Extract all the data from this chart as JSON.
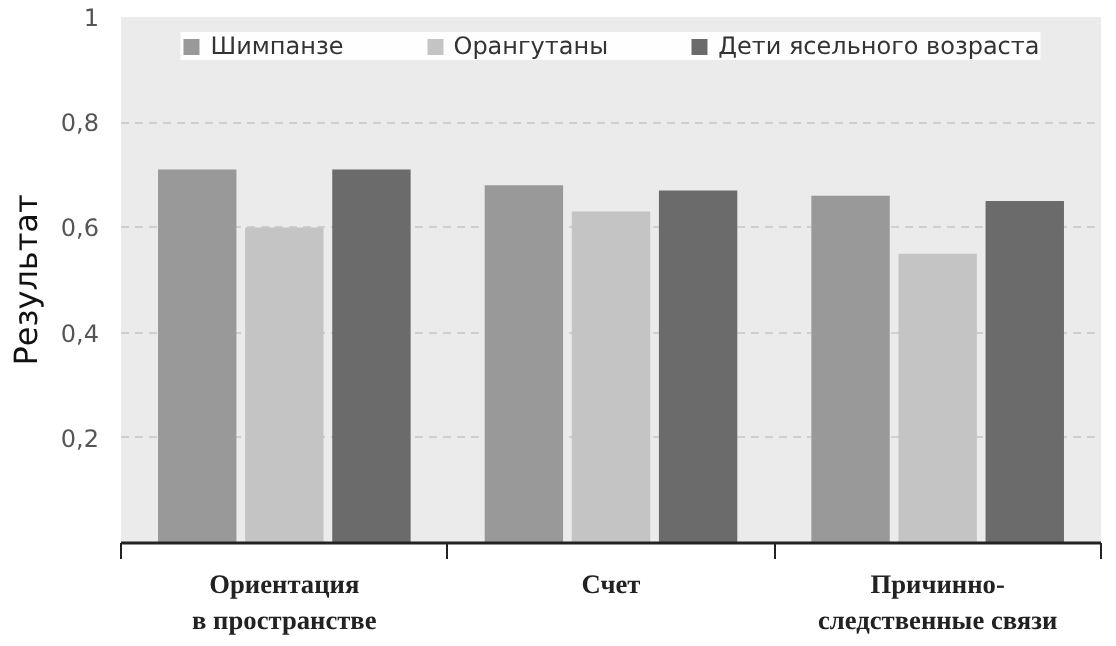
{
  "chart_data": {
    "type": "bar",
    "ylabel": "Результат",
    "categories": [
      "Ориентация\nв пространстве",
      "Счет",
      "Причинно-\nследственные связи"
    ],
    "series": [
      {
        "name": "Шимпанзе",
        "color": "#999999",
        "values": [
          0.71,
          0.68,
          0.66
        ]
      },
      {
        "name": "Орангутаны",
        "color": "#c4c4c4",
        "values": [
          0.6,
          0.63,
          0.55
        ]
      },
      {
        "name": "Дети ясельного возраста",
        "color": "#6b6b6b",
        "values": [
          0.71,
          0.67,
          0.65
        ]
      }
    ],
    "ylim": [
      0,
      1
    ],
    "yticks": [
      {
        "value": 0.2,
        "label": "0,2"
      },
      {
        "value": 0.4,
        "label": "0,4"
      },
      {
        "value": 0.6,
        "label": "0,6"
      },
      {
        "value": 0.8,
        "label": "0,8"
      },
      1
    ],
    "grid": "y",
    "legend": "top"
  }
}
